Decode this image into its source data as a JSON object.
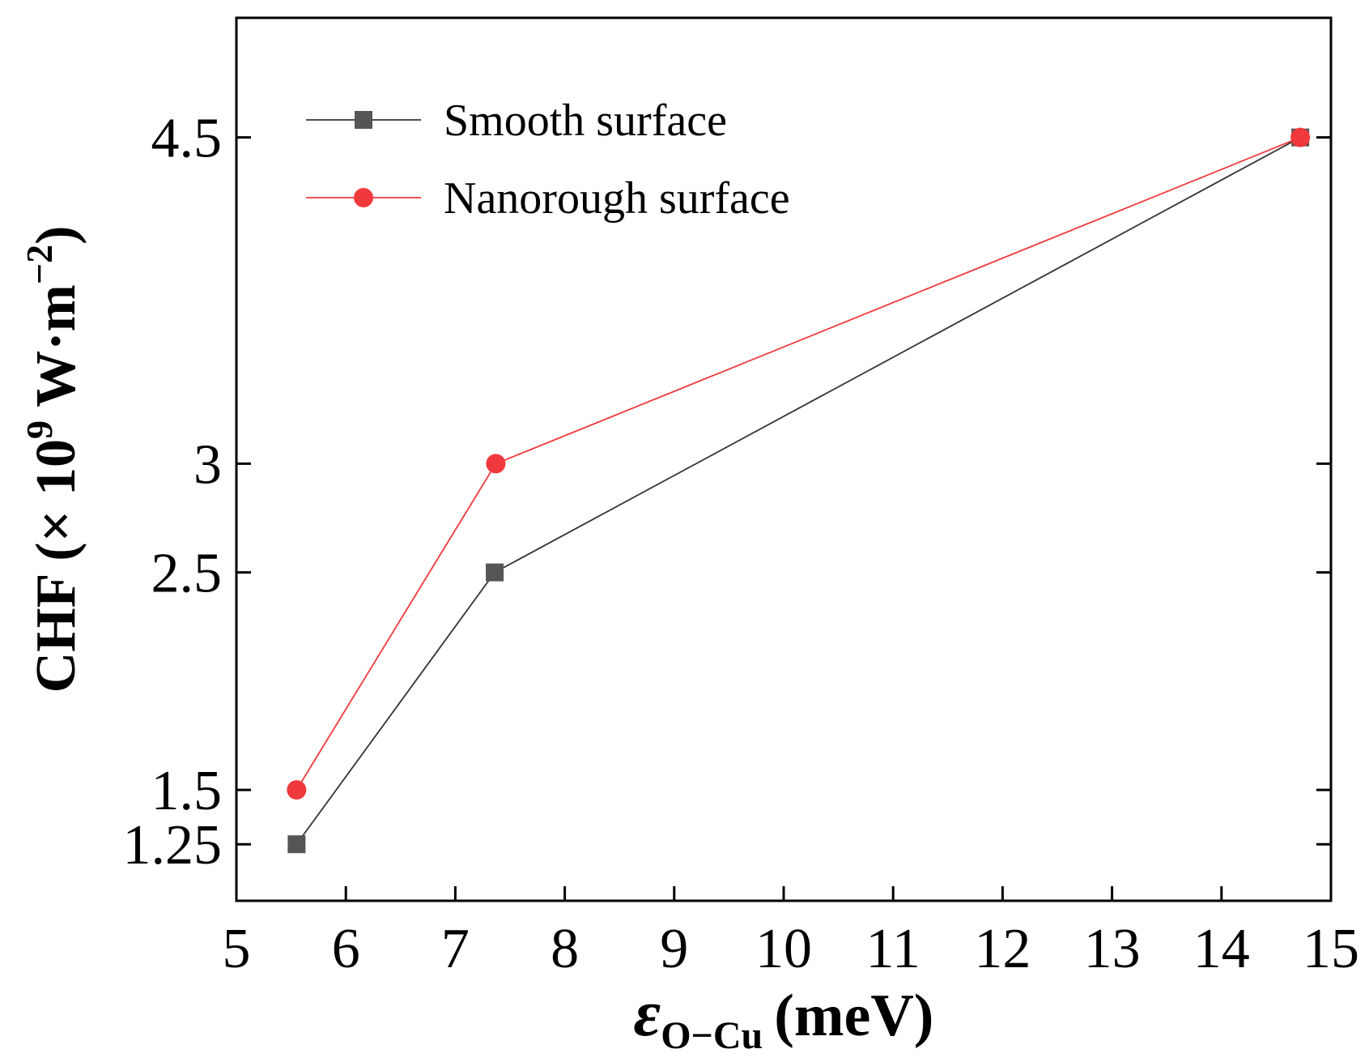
{
  "chart_data": {
    "type": "line",
    "title": "",
    "xlabel": {
      "symbol": "ε",
      "subscript": "O−Cu",
      "unit": "(meV)"
    },
    "ylabel": {
      "prefix": "CHF (× 10",
      "exponent": "9",
      "middle": " W·m",
      "unit_exponent": "−2",
      "suffix": ")"
    },
    "xlim": [
      5,
      15
    ],
    "ylim": [
      0.99,
      5.05
    ],
    "x_ticks": [
      5,
      6,
      7,
      8,
      9,
      10,
      11,
      12,
      13,
      14,
      15
    ],
    "x_tick_labels": [
      "5",
      "6",
      "7",
      "8",
      "9",
      "10",
      "11",
      "12",
      "13",
      "14",
      "15"
    ],
    "y_ticks": [
      1.25,
      1.5,
      2.5,
      3,
      4.5
    ],
    "y_tick_labels": [
      "1.25",
      "1.5",
      "2.5",
      "3",
      "4.5"
    ],
    "grid": false,
    "legend_position": "top-left",
    "series": [
      {
        "name": "Smooth surface",
        "marker": "square",
        "color": "#555555",
        "line_color": "#333333",
        "x": [
          5.55,
          7.36,
          14.72
        ],
        "y": [
          1.25,
          2.5,
          4.5
        ]
      },
      {
        "name": "Nanorough surface",
        "marker": "circle",
        "color": "#f0393c",
        "line_color": "#f0393c",
        "x": [
          5.55,
          7.37,
          14.72
        ],
        "y": [
          1.5,
          3.0,
          4.5
        ]
      }
    ]
  }
}
